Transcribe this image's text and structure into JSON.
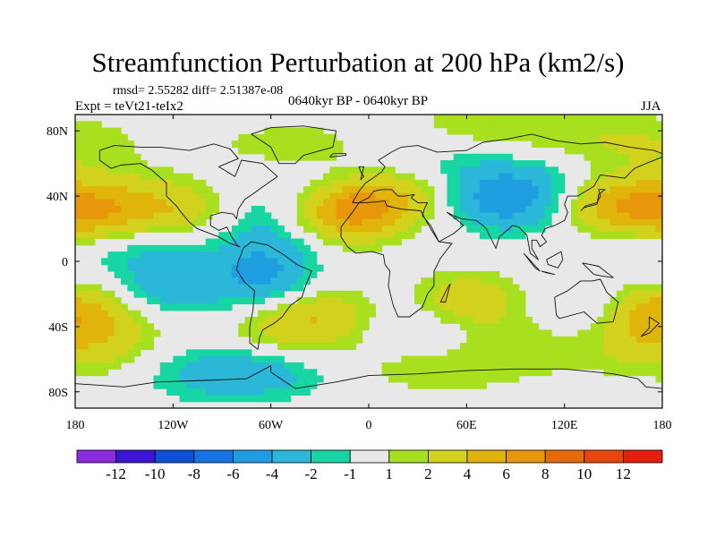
{
  "header": {
    "title": "Streamfunction Perturbation at 200 hPa (km2/s)",
    "rmsd_line": "rmsd= 2.55282 diff= 2.51387e-08",
    "experiment": "Expt = teVt21-teIx2",
    "period": "0640kyr BP - 0640kyr BP",
    "season": "JJA"
  },
  "chart_data": {
    "type": "heatmap",
    "title": "Streamfunction Perturbation at 200 hPa (km2/s)",
    "subtitle": "0640kyr BP - 0640kyr BP",
    "projection": "cylindrical equidistant",
    "xlabel": "",
    "ylabel": "",
    "xlim": [
      -180,
      180
    ],
    "ylim": [
      -90,
      90
    ],
    "x_ticks": [
      {
        "value": -180,
        "label": "180"
      },
      {
        "value": -120,
        "label": "120W"
      },
      {
        "value": -60,
        "label": "60W"
      },
      {
        "value": 0,
        "label": "0"
      },
      {
        "value": 60,
        "label": "60E"
      },
      {
        "value": 120,
        "label": "120E"
      },
      {
        "value": 180,
        "label": "180"
      }
    ],
    "y_ticks": [
      {
        "value": 80,
        "label": "80N"
      },
      {
        "value": 40,
        "label": "40N"
      },
      {
        "value": 0,
        "label": "0"
      },
      {
        "value": -40,
        "label": "40S"
      },
      {
        "value": -80,
        "label": "80S"
      }
    ],
    "contour_levels": [
      -12,
      -10,
      -8,
      -6,
      -4,
      -2,
      -1,
      1,
      2,
      4,
      6,
      8,
      10,
      12
    ],
    "colorbar_colors": [
      "#8a2be2",
      "#3c14d6",
      "#0e4ed8",
      "#1573e6",
      "#1e9de0",
      "#2ab7d8",
      "#18d6a4",
      "#e8e8e8",
      "#a8df1e",
      "#d2d21e",
      "#e0b40a",
      "#e8960a",
      "#e66a0a",
      "#e8460e",
      "#e61e0e"
    ],
    "anomaly_centers": [
      {
        "lon": -10,
        "lat": 32,
        "value": 7.5
      },
      {
        "lon": -170,
        "lat": 30,
        "value": 5.5
      },
      {
        "lon": -120,
        "lat": 32,
        "value": 3.5
      },
      {
        "lon": 60,
        "lat": -25,
        "value": 3.5
      },
      {
        "lon": 170,
        "lat": -30,
        "value": 5.5
      },
      {
        "lon": 150,
        "lat": 35,
        "value": 4.5
      },
      {
        "lon": 30,
        "lat": 48,
        "value": 3.0
      },
      {
        "lon": -30,
        "lat": -35,
        "value": 4.0
      },
      {
        "lon": -65,
        "lat": -53,
        "value": 2.5
      },
      {
        "lon": 180,
        "lat": -60,
        "value": 2.0
      },
      {
        "lon": 80,
        "lat": 82,
        "value": 2.0
      },
      {
        "lon": 165,
        "lat": 72,
        "value": 2.0
      },
      {
        "lon": 35,
        "lat": -63,
        "value": 2.0
      },
      {
        "lon": -40,
        "lat": 66,
        "value": 2.5
      },
      {
        "lon": 105,
        "lat": -55,
        "value": 2.0
      },
      {
        "lon": -175,
        "lat": -42,
        "value": 3.0
      },
      {
        "lon": 85,
        "lat": 38,
        "value": -5.5
      },
      {
        "lon": -65,
        "lat": -8,
        "value": -4.5
      },
      {
        "lon": -80,
        "lat": -65,
        "value": -5.0
      },
      {
        "lon": -120,
        "lat": -15,
        "value": -3.0
      },
      {
        "lon": -135,
        "lat": 8,
        "value": -2.0
      },
      {
        "lon": -50,
        "lat": 47,
        "value": -2.5
      },
      {
        "lon": 150,
        "lat": -30,
        "value": -3.0
      },
      {
        "lon": 25,
        "lat": -45,
        "value": -2.5
      },
      {
        "lon": 75,
        "lat": 55,
        "value": -2.0
      },
      {
        "lon": 15,
        "lat": 60,
        "value": -2.0
      },
      {
        "lon": 170,
        "lat": 5,
        "value": -1.5
      },
      {
        "lon": 140,
        "lat": -58,
        "value": -1.5
      },
      {
        "lon": -65,
        "lat": 18,
        "value": -2.0
      }
    ]
  }
}
